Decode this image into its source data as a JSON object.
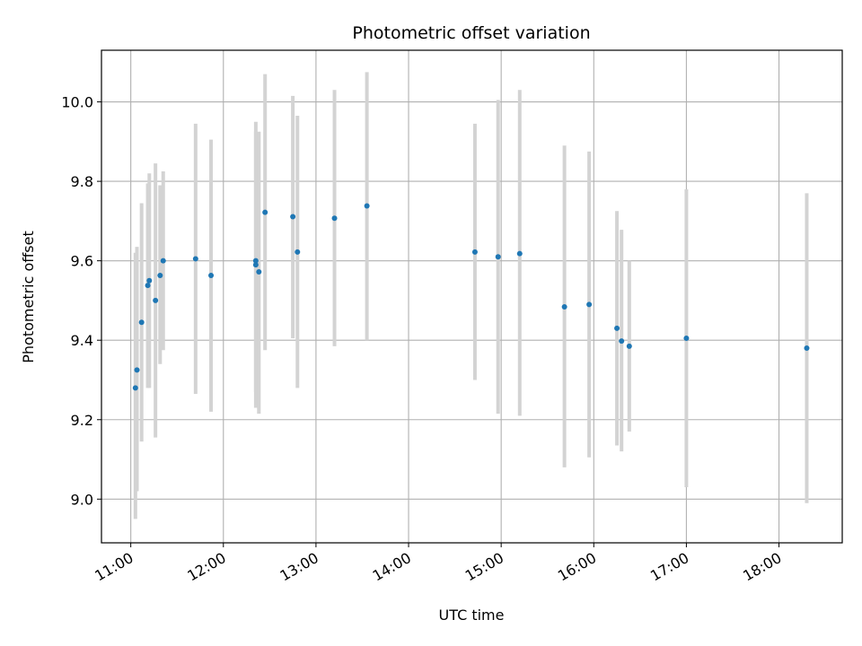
{
  "chart_data": {
    "type": "scatter",
    "title": "Photometric offset variation",
    "xlabel": "UTC time",
    "ylabel": "Photometric offset",
    "x_ticks": [
      "11:00",
      "12:00",
      "13:00",
      "14:00",
      "15:00",
      "16:00",
      "17:00",
      "18:00"
    ],
    "y_ticks": [
      "9.0",
      "9.2",
      "9.4",
      "9.6",
      "9.8",
      "10.0"
    ],
    "xlim": [
      "10:41",
      "18:41"
    ],
    "ylim": [
      8.89,
      10.13
    ],
    "grid": true,
    "marker_color": "#1f77b4",
    "errorbar_color": "#d3d3d3",
    "points": [
      {
        "time": "11:03",
        "y": 9.28,
        "lo": 8.95,
        "hi": 9.62
      },
      {
        "time": "11:04",
        "y": 9.325,
        "lo": 9.02,
        "hi": 9.635
      },
      {
        "time": "11:07",
        "y": 9.445,
        "lo": 9.145,
        "hi": 9.745
      },
      {
        "time": "11:11",
        "y": 9.538,
        "lo": 9.28,
        "hi": 9.795
      },
      {
        "time": "11:12",
        "y": 9.55,
        "lo": 9.28,
        "hi": 9.82
      },
      {
        "time": "11:16",
        "y": 9.5,
        "lo": 9.155,
        "hi": 9.845
      },
      {
        "time": "11:19",
        "y": 9.563,
        "lo": 9.34,
        "hi": 9.79
      },
      {
        "time": "11:21",
        "y": 9.6,
        "lo": 9.375,
        "hi": 9.825
      },
      {
        "time": "11:42",
        "y": 9.605,
        "lo": 9.265,
        "hi": 9.945
      },
      {
        "time": "11:52",
        "y": 9.563,
        "lo": 9.22,
        "hi": 9.905
      },
      {
        "time": "12:21",
        "y": 9.6,
        "lo": 9.27,
        "hi": 9.925
      },
      {
        "time": "12:21",
        "y": 9.59,
        "lo": 9.23,
        "hi": 9.95
      },
      {
        "time": "12:23",
        "y": 9.572,
        "lo": 9.215,
        "hi": 9.925
      },
      {
        "time": "12:27",
        "y": 9.722,
        "lo": 9.375,
        "hi": 10.07
      },
      {
        "time": "12:45",
        "y": 9.711,
        "lo": 9.405,
        "hi": 10.015
      },
      {
        "time": "12:48",
        "y": 9.622,
        "lo": 9.28,
        "hi": 9.965
      },
      {
        "time": "13:12",
        "y": 9.707,
        "lo": 9.385,
        "hi": 10.03
      },
      {
        "time": "13:33",
        "y": 9.738,
        "lo": 9.4,
        "hi": 10.075
      },
      {
        "time": "14:43",
        "y": 9.622,
        "lo": 9.3,
        "hi": 9.945
      },
      {
        "time": "14:58",
        "y": 9.61,
        "lo": 9.215,
        "hi": 10.005
      },
      {
        "time": "15:12",
        "y": 9.618,
        "lo": 9.21,
        "hi": 10.03
      },
      {
        "time": "15:41",
        "y": 9.484,
        "lo": 9.08,
        "hi": 9.89
      },
      {
        "time": "15:57",
        "y": 9.49,
        "lo": 9.105,
        "hi": 9.875
      },
      {
        "time": "16:15",
        "y": 9.43,
        "lo": 9.135,
        "hi": 9.725
      },
      {
        "time": "16:18",
        "y": 9.398,
        "lo": 9.12,
        "hi": 9.678
      },
      {
        "time": "16:23",
        "y": 9.385,
        "lo": 9.17,
        "hi": 9.6
      },
      {
        "time": "17:00",
        "y": 9.405,
        "lo": 9.03,
        "hi": 9.78
      },
      {
        "time": "18:18",
        "y": 9.38,
        "lo": 8.99,
        "hi": 9.77
      }
    ]
  }
}
